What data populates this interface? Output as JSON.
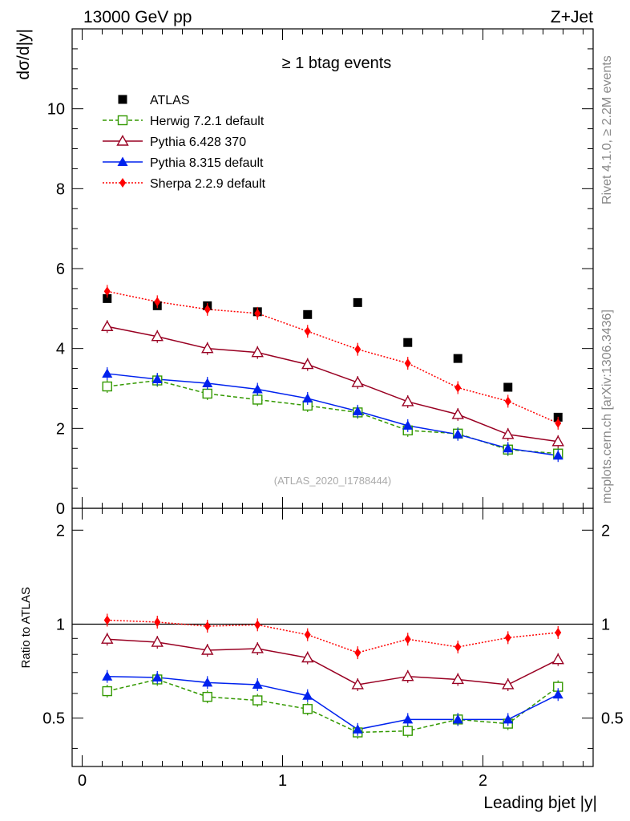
{
  "header": {
    "energy_label": "13000 GeV pp",
    "process_label": "Z+Jet"
  },
  "side_labels": {
    "rivet": "Rivet 4.1.0, ≥ 2.2M events",
    "mcplots": "mcplots.cern.ch [arXiv:1306.3436]"
  },
  "chart_data": [
    {
      "type": "scatter",
      "title": "≥ 1 btag events",
      "watermark": "(ATLAS_2020_I1788444)",
      "xlabel": "Leading bjet |y|",
      "ylabel": "dσ/d|y|",
      "xlim": [
        -0.05,
        2.55
      ],
      "ylim": [
        0,
        12
      ],
      "y_ticks": [
        0,
        2,
        4,
        6,
        8,
        10
      ],
      "y_tick_labels": [
        "0",
        "2",
        "4",
        "6",
        "8",
        "10"
      ],
      "x": [
        0.125,
        0.375,
        0.625,
        0.875,
        1.125,
        1.375,
        1.625,
        1.875,
        2.125,
        2.375
      ],
      "series": [
        {
          "name": "ATLAS",
          "color": "#000000",
          "marker": "square-filled",
          "line": "none",
          "values": [
            5.25,
            5.07,
            5.07,
            4.92,
            4.85,
            5.15,
            4.15,
            3.75,
            3.03,
            2.28
          ]
        },
        {
          "name": "Herwig 7.2.1 default",
          "color": "#339900",
          "marker": "square-open",
          "line": "dashed",
          "values": [
            3.05,
            3.2,
            2.87,
            2.72,
            2.57,
            2.4,
            1.95,
            1.87,
            1.47,
            1.37
          ]
        },
        {
          "name": "Pythia 6.428 370",
          "color": "#990022",
          "marker": "triangle-open",
          "line": "solid",
          "values": [
            4.55,
            4.3,
            4.0,
            3.9,
            3.6,
            3.15,
            2.67,
            2.35,
            1.85,
            1.67
          ]
        },
        {
          "name": "Pythia 8.315 default",
          "color": "#0022ee",
          "marker": "triangle-filled",
          "line": "solid",
          "values": [
            3.37,
            3.23,
            3.13,
            2.98,
            2.75,
            2.43,
            2.07,
            1.85,
            1.5,
            1.32
          ]
        },
        {
          "name": "Sherpa 2.2.9 default",
          "color": "#ff0000",
          "marker": "diamond-filled",
          "line": "dotted",
          "values": [
            5.43,
            5.17,
            4.98,
            4.88,
            4.43,
            3.98,
            3.63,
            3.02,
            2.68,
            2.13
          ]
        }
      ]
    },
    {
      "type": "scatter",
      "title": "",
      "xlabel": "Leading bjet |y|",
      "ylabel": "Ratio to ATLAS",
      "xlim": [
        -0.05,
        2.55
      ],
      "ylim": [
        0.35,
        2.35
      ],
      "reference_line": 1,
      "y_ticks": [
        0.5,
        1,
        2
      ],
      "y_tick_labels": [
        "0.5",
        "1",
        "2"
      ],
      "x_ticks": [
        0,
        1,
        2
      ],
      "x_tick_labels": [
        "0",
        "1",
        "2"
      ],
      "x": [
        0.125,
        0.375,
        0.625,
        0.875,
        1.125,
        1.375,
        1.625,
        1.875,
        2.125,
        2.375
      ],
      "series": [
        {
          "name": "Herwig 7.2.1 default",
          "color": "#339900",
          "marker": "square-open",
          "line": "dashed",
          "values": [
            0.61,
            0.665,
            0.585,
            0.57,
            0.535,
            0.45,
            0.455,
            0.495,
            0.48,
            0.63
          ]
        },
        {
          "name": "Pythia 6.428 370",
          "color": "#990022",
          "marker": "triangle-open",
          "line": "solid",
          "values": [
            0.895,
            0.875,
            0.825,
            0.835,
            0.78,
            0.64,
            0.68,
            0.665,
            0.64,
            0.77
          ]
        },
        {
          "name": "Pythia 8.315 default",
          "color": "#0022ee",
          "marker": "triangle-filled",
          "line": "solid",
          "values": [
            0.68,
            0.675,
            0.65,
            0.64,
            0.59,
            0.46,
            0.495,
            0.495,
            0.495,
            0.595
          ]
        },
        {
          "name": "Sherpa 2.2.9 default",
          "color": "#ff0000",
          "marker": "diamond-filled",
          "line": "dotted",
          "values": [
            1.03,
            1.015,
            0.985,
            0.995,
            0.925,
            0.81,
            0.895,
            0.845,
            0.905,
            0.94
          ]
        }
      ]
    }
  ]
}
